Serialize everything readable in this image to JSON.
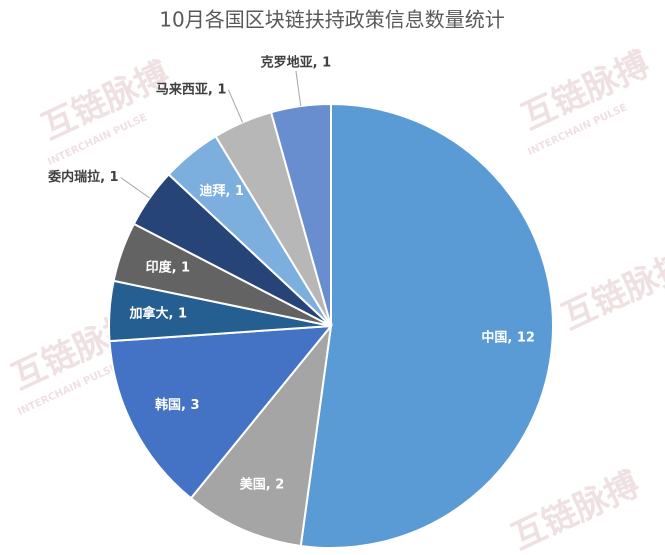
{
  "chart_data": {
    "type": "pie",
    "title": "10月各国区块链扶持政策信息数量统计",
    "values": [
      12,
      2,
      3,
      1,
      1,
      1,
      1,
      1,
      1
    ],
    "value_labels": [
      "中国, 12",
      "美国, 2",
      "韩国, 3",
      "加拿大, 1",
      "印度, 1",
      "委内瑞拉, 1",
      "迪拜, 1",
      "马来西亚, 1",
      "克罗地亚, 1"
    ],
    "colors": [
      "#5b9bd5",
      "#a5a5a5",
      "#4472c4",
      "#255e91",
      "#636363",
      "#264478",
      "#7cafdd",
      "#b7b7b7",
      "#698ed0"
    ]
  },
  "watermark": {
    "text": "互链脉搏",
    "subtext": "INTERCHAIN PULSE"
  }
}
